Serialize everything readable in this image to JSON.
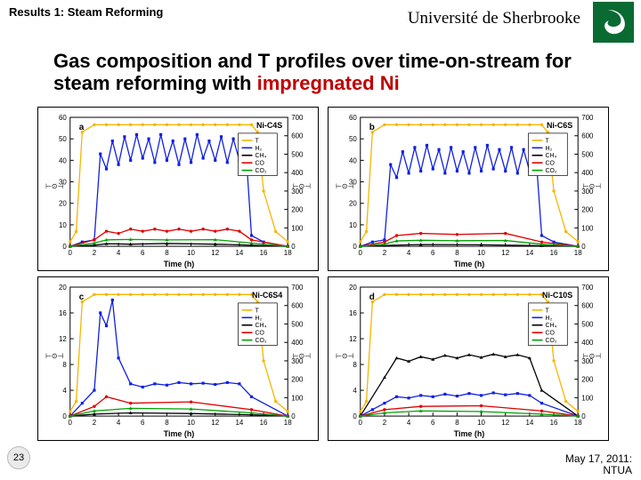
{
  "header": {
    "breadcrumb": "Results 1: Steam Reforming",
    "university": "Université de Sherbrooke"
  },
  "title_parts": {
    "black": "Gas composition and T profiles over time-on-stream for steam reforming with ",
    "red": "impregnated Ni"
  },
  "slide_number": "23",
  "footer": {
    "line1": "May 17, 2011:",
    "line2": "NTUA"
  },
  "colors": {
    "T": "#f7b500",
    "H2": "#1020e0",
    "CH4": "#000000",
    "CO": "#e00000",
    "CO2": "#00a000",
    "axis": "#000000",
    "grid": "#d0d0d0"
  },
  "axis": {
    "x": {
      "label": "Time (h)",
      "min": 0,
      "max": 18,
      "step": 2
    },
    "yL": {
      "min": 0,
      "max": 60,
      "step": 10
    },
    "yL_cd": {
      "min": 0,
      "max": 20,
      "step": 4
    },
    "yR": {
      "min": 0,
      "max": 700,
      "step": 100
    },
    "yL_label": "Gas yield (mmol / g feed)",
    "yR_label_1": "T (°C)",
    "yR_label_2": "H2O"
  },
  "legend": [
    "T",
    "H2",
    "CH4",
    "CO",
    "CO2"
  ],
  "panels": {
    "a": {
      "label": "a",
      "ni": "Ni-C4S",
      "T": [
        [
          0,
          25
        ],
        [
          0.5,
          80
        ],
        [
          1,
          620
        ],
        [
          2,
          660
        ],
        [
          3,
          660
        ],
        [
          4,
          660
        ],
        [
          5,
          660
        ],
        [
          6,
          660
        ],
        [
          7,
          660
        ],
        [
          8,
          660
        ],
        [
          9,
          660
        ],
        [
          10,
          660
        ],
        [
          11,
          660
        ],
        [
          12,
          660
        ],
        [
          13,
          660
        ],
        [
          14,
          660
        ],
        [
          15,
          660
        ],
        [
          15.5,
          620
        ],
        [
          16,
          300
        ],
        [
          17,
          80
        ],
        [
          18,
          25
        ]
      ],
      "H2": [
        [
          0,
          0
        ],
        [
          1,
          2
        ],
        [
          2,
          3
        ],
        [
          2.5,
          43
        ],
        [
          3,
          36
        ],
        [
          3.5,
          49
        ],
        [
          4,
          38
        ],
        [
          4.5,
          51
        ],
        [
          5,
          40
        ],
        [
          5.5,
          52
        ],
        [
          6,
          41
        ],
        [
          6.5,
          50
        ],
        [
          7,
          39
        ],
        [
          7.5,
          52
        ],
        [
          8,
          40
        ],
        [
          8.5,
          49
        ],
        [
          9,
          38
        ],
        [
          9.5,
          50
        ],
        [
          10,
          39
        ],
        [
          10.5,
          52
        ],
        [
          11,
          41
        ],
        [
          11.5,
          49
        ],
        [
          12,
          40
        ],
        [
          12.5,
          51
        ],
        [
          13,
          39
        ],
        [
          13.5,
          50
        ],
        [
          14,
          40
        ],
        [
          14.5,
          48
        ],
        [
          15,
          5
        ],
        [
          16,
          2
        ],
        [
          18,
          0
        ]
      ],
      "CH4": [
        [
          0,
          0
        ],
        [
          2,
          0.5
        ],
        [
          3,
          1.2
        ],
        [
          5,
          1.0
        ],
        [
          8,
          1.3
        ],
        [
          12,
          1.0
        ],
        [
          15,
          0.5
        ],
        [
          18,
          0
        ]
      ],
      "CO": [
        [
          0,
          0
        ],
        [
          2,
          3
        ],
        [
          3,
          7
        ],
        [
          4,
          6
        ],
        [
          5,
          8
        ],
        [
          6,
          7
        ],
        [
          7,
          8
        ],
        [
          8,
          7
        ],
        [
          9,
          8
        ],
        [
          10,
          7
        ],
        [
          11,
          8
        ],
        [
          12,
          7
        ],
        [
          13,
          8
        ],
        [
          14,
          7
        ],
        [
          15,
          3
        ],
        [
          18,
          0
        ]
      ],
      "CO2": [
        [
          0,
          0
        ],
        [
          2,
          1.5
        ],
        [
          3,
          3
        ],
        [
          5,
          3.2
        ],
        [
          8,
          3
        ],
        [
          12,
          3.1
        ],
        [
          15,
          1.5
        ],
        [
          18,
          0
        ]
      ]
    },
    "b": {
      "label": "b",
      "ni": "Ni-C6S",
      "T": [
        [
          0,
          25
        ],
        [
          0.5,
          80
        ],
        [
          1,
          620
        ],
        [
          2,
          660
        ],
        [
          3,
          660
        ],
        [
          4,
          660
        ],
        [
          5,
          660
        ],
        [
          6,
          660
        ],
        [
          7,
          660
        ],
        [
          8,
          660
        ],
        [
          9,
          660
        ],
        [
          10,
          660
        ],
        [
          11,
          660
        ],
        [
          12,
          660
        ],
        [
          13,
          660
        ],
        [
          14,
          660
        ],
        [
          15,
          660
        ],
        [
          15.5,
          620
        ],
        [
          16,
          300
        ],
        [
          17,
          80
        ],
        [
          18,
          25
        ]
      ],
      "H2": [
        [
          0,
          0
        ],
        [
          1,
          2
        ],
        [
          2,
          3
        ],
        [
          2.5,
          38
        ],
        [
          3,
          32
        ],
        [
          3.5,
          44
        ],
        [
          4,
          34
        ],
        [
          4.5,
          46
        ],
        [
          5,
          35
        ],
        [
          5.5,
          47
        ],
        [
          6,
          36
        ],
        [
          6.5,
          45
        ],
        [
          7,
          34
        ],
        [
          7.5,
          46
        ],
        [
          8,
          35
        ],
        [
          8.5,
          44
        ],
        [
          9,
          34
        ],
        [
          9.5,
          46
        ],
        [
          10,
          35
        ],
        [
          10.5,
          47
        ],
        [
          11,
          36
        ],
        [
          11.5,
          45
        ],
        [
          12,
          35
        ],
        [
          12.5,
          46
        ],
        [
          13,
          34
        ],
        [
          13.5,
          45
        ],
        [
          14,
          35
        ],
        [
          14.5,
          44
        ],
        [
          15,
          5
        ],
        [
          16,
          2
        ],
        [
          18,
          0
        ]
      ],
      "CH4": [
        [
          0,
          0
        ],
        [
          2,
          0.4
        ],
        [
          5,
          0.8
        ],
        [
          10,
          0.7
        ],
        [
          15,
          0.3
        ],
        [
          18,
          0
        ]
      ],
      "CO": [
        [
          0,
          0
        ],
        [
          2,
          2
        ],
        [
          3,
          5
        ],
        [
          5,
          6
        ],
        [
          8,
          5.5
        ],
        [
          12,
          6
        ],
        [
          15,
          2
        ],
        [
          18,
          0
        ]
      ],
      "CO2": [
        [
          0,
          0
        ],
        [
          2,
          1
        ],
        [
          3,
          2.5
        ],
        [
          5,
          2.8
        ],
        [
          8,
          2.6
        ],
        [
          12,
          2.7
        ],
        [
          15,
          1
        ],
        [
          18,
          0
        ]
      ]
    },
    "c": {
      "label": "c",
      "ni": "Ni-C6S4",
      "T": [
        [
          0,
          25
        ],
        [
          0.5,
          80
        ],
        [
          1,
          620
        ],
        [
          2,
          660
        ],
        [
          3,
          660
        ],
        [
          4,
          660
        ],
        [
          5,
          660
        ],
        [
          6,
          660
        ],
        [
          7,
          660
        ],
        [
          8,
          660
        ],
        [
          9,
          660
        ],
        [
          10,
          660
        ],
        [
          11,
          660
        ],
        [
          12,
          660
        ],
        [
          13,
          660
        ],
        [
          14,
          660
        ],
        [
          15,
          660
        ],
        [
          15.5,
          620
        ],
        [
          16,
          300
        ],
        [
          17,
          80
        ],
        [
          18,
          25
        ]
      ],
      "H2": [
        [
          0,
          0
        ],
        [
          1,
          2
        ],
        [
          2,
          4
        ],
        [
          2.5,
          16
        ],
        [
          3,
          14
        ],
        [
          3.5,
          18
        ],
        [
          4,
          9
        ],
        [
          5,
          5
        ],
        [
          6,
          4.5
        ],
        [
          7,
          5
        ],
        [
          8,
          4.8
        ],
        [
          9,
          5.2
        ],
        [
          10,
          5
        ],
        [
          11,
          5.1
        ],
        [
          12,
          4.9
        ],
        [
          13,
          5.2
        ],
        [
          14,
          5
        ],
        [
          15,
          3
        ],
        [
          18,
          0
        ]
      ],
      "CH4": [
        [
          0,
          0
        ],
        [
          2,
          0.3
        ],
        [
          5,
          0.5
        ],
        [
          10,
          0.4
        ],
        [
          15,
          0.2
        ],
        [
          18,
          0
        ]
      ],
      "CO": [
        [
          0,
          0
        ],
        [
          2,
          1.5
        ],
        [
          3,
          3
        ],
        [
          5,
          2
        ],
        [
          10,
          2.2
        ],
        [
          15,
          1
        ],
        [
          18,
          0
        ]
      ],
      "CO2": [
        [
          0,
          0
        ],
        [
          2,
          0.8
        ],
        [
          5,
          1.2
        ],
        [
          10,
          1.1
        ],
        [
          15,
          0.5
        ],
        [
          18,
          0
        ]
      ]
    },
    "d": {
      "label": "d",
      "ni": "Ni-C10S",
      "T": [
        [
          0,
          25
        ],
        [
          0.5,
          80
        ],
        [
          1,
          620
        ],
        [
          2,
          660
        ],
        [
          3,
          660
        ],
        [
          4,
          660
        ],
        [
          5,
          660
        ],
        [
          6,
          660
        ],
        [
          7,
          660
        ],
        [
          8,
          660
        ],
        [
          9,
          660
        ],
        [
          10,
          660
        ],
        [
          11,
          660
        ],
        [
          12,
          660
        ],
        [
          13,
          660
        ],
        [
          14,
          660
        ],
        [
          15,
          660
        ],
        [
          15.5,
          620
        ],
        [
          16,
          300
        ],
        [
          17,
          80
        ],
        [
          18,
          25
        ]
      ],
      "H2": [
        [
          0,
          0
        ],
        [
          1,
          1
        ],
        [
          2,
          2
        ],
        [
          3,
          3
        ],
        [
          4,
          2.8
        ],
        [
          5,
          3.2
        ],
        [
          6,
          3
        ],
        [
          7,
          3.4
        ],
        [
          8,
          3.1
        ],
        [
          9,
          3.5
        ],
        [
          10,
          3.2
        ],
        [
          11,
          3.6
        ],
        [
          12,
          3.3
        ],
        [
          13,
          3.5
        ],
        [
          14,
          3.2
        ],
        [
          15,
          2
        ],
        [
          18,
          0
        ]
      ],
      "CH4": [
        [
          0,
          0
        ],
        [
          2,
          6
        ],
        [
          3,
          9
        ],
        [
          4,
          8.5
        ],
        [
          5,
          9.2
        ],
        [
          6,
          8.8
        ],
        [
          7,
          9.4
        ],
        [
          8,
          9
        ],
        [
          9,
          9.5
        ],
        [
          10,
          9.1
        ],
        [
          11,
          9.6
        ],
        [
          12,
          9.2
        ],
        [
          13,
          9.5
        ],
        [
          14,
          9
        ],
        [
          15,
          4
        ],
        [
          18,
          0
        ]
      ],
      "CO": [
        [
          0,
          0
        ],
        [
          2,
          1
        ],
        [
          5,
          1.5
        ],
        [
          10,
          1.6
        ],
        [
          15,
          0.8
        ],
        [
          18,
          0
        ]
      ],
      "CO2": [
        [
          0,
          0
        ],
        [
          2,
          0.5
        ],
        [
          5,
          0.8
        ],
        [
          10,
          0.7
        ],
        [
          15,
          0.3
        ],
        [
          18,
          0
        ]
      ]
    }
  }
}
